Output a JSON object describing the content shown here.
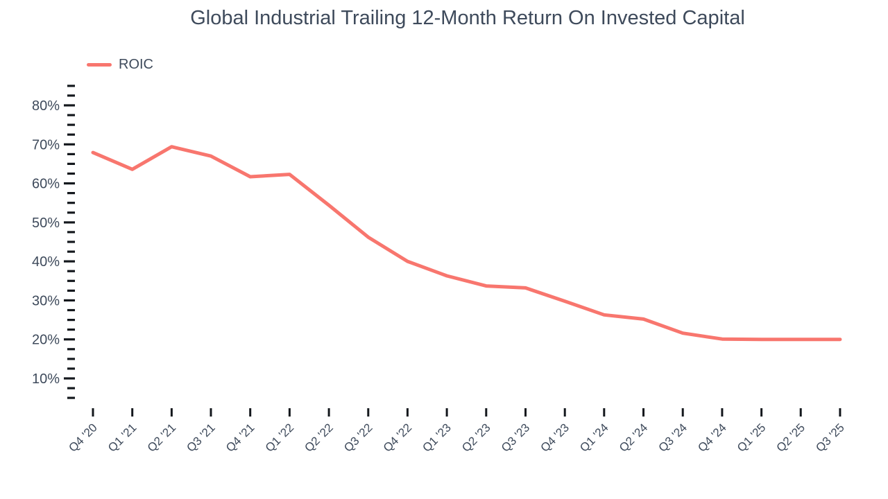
{
  "title": "Global Industrial Trailing 12-Month Return On Invested Capital",
  "legend": {
    "label": "ROIC"
  },
  "colors": {
    "line": "#f8766e",
    "text": "#3e4a5b",
    "tick": "#14181d",
    "background": "#ffffff"
  },
  "chart_data": {
    "type": "line",
    "title": "Global Industrial Trailing 12-Month Return On Invested Capital",
    "xlabel": "",
    "ylabel": "",
    "categories": [
      "Q4 '20",
      "Q1 '21",
      "Q2 '21",
      "Q3 '21",
      "Q4 '21",
      "Q1 '22",
      "Q2 '22",
      "Q3 '22",
      "Q4 '22",
      "Q1 '23",
      "Q2 '23",
      "Q3 '23",
      "Q4 '23",
      "Q1 '24",
      "Q2 '24",
      "Q3 '24",
      "Q4 '24",
      "Q1 '25",
      "Q2 '25",
      "Q3 '25"
    ],
    "series": [
      {
        "name": "ROIC",
        "values": [
          67.9,
          63.6,
          69.4,
          67.0,
          61.7,
          62.3,
          54.4,
          46.2,
          40.0,
          36.3,
          33.7,
          33.2,
          29.8,
          26.3,
          25.2,
          21.6,
          20.1,
          20.0,
          20.0,
          20.0
        ]
      }
    ],
    "y_ticks": [
      {
        "v": 80,
        "label": "80%"
      },
      {
        "v": 70,
        "label": "70%"
      },
      {
        "v": 60,
        "label": "60%"
      },
      {
        "v": 50,
        "label": "50%"
      },
      {
        "v": 40,
        "label": "40%"
      },
      {
        "v": 30,
        "label": "30%"
      },
      {
        "v": 20,
        "label": "20%"
      },
      {
        "v": 10,
        "label": "10%"
      }
    ],
    "y_minor_step": 2.5,
    "y_dash_range": [
      5,
      85
    ],
    "ylim": [
      5,
      85
    ],
    "grid": false,
    "legend_position": "top-left"
  }
}
